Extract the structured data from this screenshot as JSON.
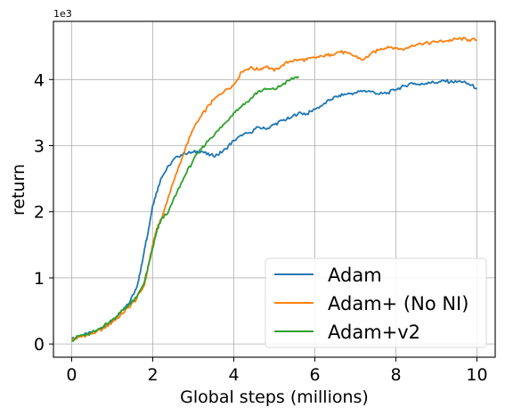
{
  "chart_data": {
    "type": "line",
    "xlabel": "Global steps (millions)",
    "ylabel": "return",
    "y_offset_label": "1e3",
    "xlim": [
      -0.45,
      10.45
    ],
    "ylim": [
      -0.2,
      4.88
    ],
    "xticks": [
      0,
      2,
      4,
      6,
      8,
      10
    ],
    "yticks": [
      0,
      1,
      2,
      3,
      4
    ],
    "grid": true,
    "legend_position": "lower-right",
    "series": [
      {
        "name": "Adam",
        "color": "#1f77b4",
        "x": [
          0,
          0.2,
          0.4,
          0.6,
          0.8,
          1.0,
          1.2,
          1.4,
          1.6,
          1.7,
          1.8,
          1.9,
          2.0,
          2.1,
          2.2,
          2.4,
          2.6,
          2.8,
          3.0,
          3.2,
          3.4,
          3.6,
          3.8,
          4.0,
          4.2,
          4.4,
          4.6,
          4.8,
          5.0,
          5.2,
          5.4,
          5.6,
          5.8,
          6.0,
          6.2,
          6.4,
          6.6,
          6.8,
          7.0,
          7.2,
          7.4,
          7.6,
          7.8,
          8.0,
          8.2,
          8.4,
          8.6,
          8.8,
          9.0,
          9.2,
          9.4,
          9.6,
          9.8,
          10.0
        ],
        "y": [
          0.07,
          0.12,
          0.15,
          0.2,
          0.26,
          0.36,
          0.47,
          0.6,
          0.85,
          1.1,
          1.45,
          1.75,
          2.1,
          2.3,
          2.5,
          2.7,
          2.84,
          2.88,
          2.9,
          2.92,
          2.85,
          2.86,
          2.95,
          3.08,
          3.15,
          3.2,
          3.28,
          3.25,
          3.32,
          3.38,
          3.42,
          3.5,
          3.48,
          3.55,
          3.62,
          3.7,
          3.76,
          3.78,
          3.8,
          3.83,
          3.82,
          3.78,
          3.8,
          3.85,
          3.9,
          3.95,
          3.92,
          3.96,
          3.95,
          3.98,
          3.96,
          3.97,
          3.93,
          3.87
        ]
      },
      {
        "name": "Adam+ (No NI)",
        "color": "#ff7f0e",
        "x": [
          0,
          0.2,
          0.4,
          0.6,
          0.8,
          1.0,
          1.2,
          1.4,
          1.6,
          1.8,
          1.9,
          2.0,
          2.1,
          2.2,
          2.3,
          2.4,
          2.6,
          2.8,
          3.0,
          3.2,
          3.4,
          3.6,
          3.8,
          4.0,
          4.2,
          4.4,
          4.6,
          4.8,
          5.0,
          5.2,
          5.4,
          5.6,
          5.8,
          6.0,
          6.2,
          6.4,
          6.6,
          6.8,
          7.0,
          7.2,
          7.4,
          7.6,
          7.8,
          8.0,
          8.2,
          8.4,
          8.6,
          8.8,
          9.0,
          9.2,
          9.4,
          9.6,
          9.8,
          10.0
        ],
        "y": [
          0.06,
          0.11,
          0.14,
          0.18,
          0.24,
          0.33,
          0.43,
          0.55,
          0.68,
          0.9,
          1.2,
          1.5,
          1.75,
          1.88,
          2.05,
          2.25,
          2.6,
          2.95,
          3.25,
          3.45,
          3.62,
          3.75,
          3.85,
          3.92,
          4.12,
          4.18,
          4.15,
          4.2,
          4.13,
          4.22,
          4.28,
          4.3,
          4.3,
          4.33,
          4.35,
          4.38,
          4.42,
          4.4,
          4.35,
          4.3,
          4.4,
          4.45,
          4.5,
          4.48,
          4.45,
          4.52,
          4.55,
          4.55,
          4.57,
          4.58,
          4.6,
          4.62,
          4.6,
          4.6
        ]
      },
      {
        "name": "Adam+v2",
        "color": "#2ca02c",
        "x": [
          0,
          0.2,
          0.4,
          0.6,
          0.8,
          1.0,
          1.2,
          1.4,
          1.6,
          1.8,
          1.9,
          2.0,
          2.1,
          2.2,
          2.4,
          2.6,
          2.8,
          3.0,
          3.2,
          3.4,
          3.6,
          3.8,
          4.0,
          4.2,
          4.4,
          4.6,
          4.8,
          5.0,
          5.2,
          5.4,
          5.6
        ],
        "y": [
          0.05,
          0.13,
          0.14,
          0.2,
          0.28,
          0.36,
          0.48,
          0.58,
          0.7,
          0.95,
          1.2,
          1.45,
          1.7,
          1.87,
          2.02,
          2.3,
          2.55,
          2.78,
          2.95,
          3.1,
          3.22,
          3.35,
          3.5,
          3.6,
          3.7,
          3.82,
          3.85,
          3.85,
          3.92,
          4.0,
          4.05
        ]
      }
    ]
  }
}
